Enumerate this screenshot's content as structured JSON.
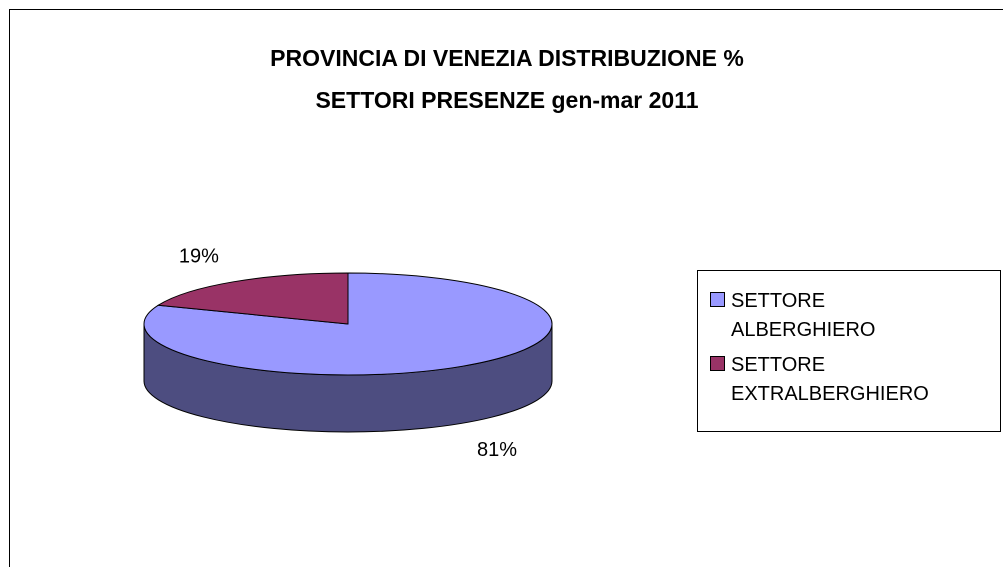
{
  "chart_data": {
    "type": "pie3d",
    "title": [
      "PROVINCIA DI VENEZIA DISTRIBUZIONE %",
      "SETTORI PRESENZE gen-mar 2011"
    ],
    "categories": [
      "SETTORE ALBERGHIERO",
      "SETTORE EXTRALBERGHIERO"
    ],
    "values": [
      81,
      19
    ],
    "value_labels": [
      "81%",
      "19%"
    ],
    "colors": [
      "#9999ff",
      "#993366"
    ],
    "side_colors": [
      "#4d4d80",
      "#4d1a33"
    ],
    "legend": "right"
  }
}
